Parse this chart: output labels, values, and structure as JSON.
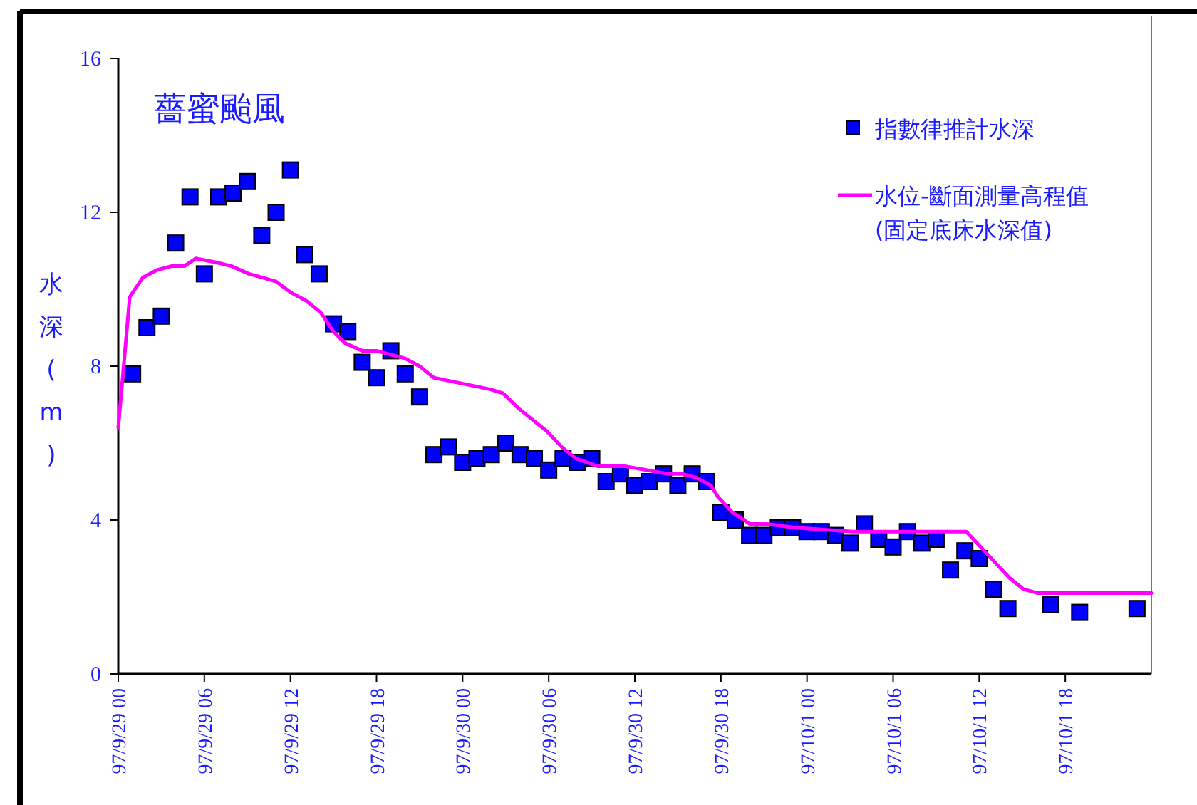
{
  "chart_data": {
    "type": "scatter",
    "title": "薔蜜颱風",
    "ylabel": "水深(m)",
    "legend": "top right",
    "xlim": [
      "--09-29T00:00",
      "--10-02T00:00"
    ],
    "ylim": [
      0,
      16
    ],
    "xticks": [
      {
        "value": "--09-29T00:00",
        "label": "97/9/29 00"
      },
      {
        "value": "--09-29T06:00",
        "label": "97/9/29 06"
      },
      {
        "value": "--09-29T12:00",
        "label": "97/9/29 12"
      },
      {
        "value": "--09-29T18:00",
        "label": "97/9/29 18"
      },
      {
        "value": "--09-30T00:00",
        "label": "97/9/30 00"
      },
      {
        "value": "--09-30T06:00",
        "label": "97/9/30 06"
      },
      {
        "value": "--09-30T12:00",
        "label": "97/9/30 12"
      },
      {
        "value": "--09-30T18:00",
        "label": "97/9/30 18"
      },
      {
        "value": "--10-01T00:00",
        "label": "97/10/1 00"
      },
      {
        "value": "--10-01T06:00",
        "label": "97/10/1 06"
      },
      {
        "value": "--10-01T12:00",
        "label": "97/10/1 12"
      },
      {
        "value": "--10-01T18:00",
        "label": "97/10/1 18"
      }
    ],
    "yticks": [
      0,
      4,
      8,
      12,
      16
    ],
    "series": [
      {
        "name": "指數律推計水深",
        "marker": "square",
        "color": "#0000ff",
        "x": [
          "--09-29T01:00",
          "--09-29T02:00",
          "--09-29T03:00",
          "--09-29T04:00",
          "--09-29T05:00",
          "--09-29T06:00",
          "--09-29T07:00",
          "--09-29T08:00",
          "--09-29T09:00",
          "--09-29T10:00",
          "--09-29T11:00",
          "--09-29T12:00",
          "--09-29T13:00",
          "--09-29T14:00",
          "--09-29T15:00",
          "--09-29T16:00",
          "--09-29T17:00",
          "--09-29T18:00",
          "--09-29T19:00",
          "--09-29T20:00",
          "--09-29T21:00",
          "--09-29T22:00",
          "--09-29T23:00",
          "--09-30T00:00",
          "--09-30T01:00",
          "--09-30T02:00",
          "--09-30T03:00",
          "--09-30T04:00",
          "--09-30T05:00",
          "--09-30T06:00",
          "--09-30T07:00",
          "--09-30T08:00",
          "--09-30T09:00",
          "--09-30T10:00",
          "--09-30T11:00",
          "--09-30T12:00",
          "--09-30T13:00",
          "--09-30T14:00",
          "--09-30T15:00",
          "--09-30T16:00",
          "--09-30T17:00",
          "--09-30T18:00",
          "--09-30T19:00",
          "--09-30T20:00",
          "--09-30T21:00",
          "--09-30T22:00",
          "--09-30T23:00",
          "--10-01T00:00",
          "--10-01T01:00",
          "--10-01T02:00",
          "--10-01T03:00",
          "--10-01T04:00",
          "--10-01T05:00",
          "--10-01T06:00",
          "--10-01T07:00",
          "--10-01T08:00",
          "--10-01T09:00",
          "--10-01T10:00",
          "--10-01T11:00",
          "--10-01T12:00",
          "--10-01T13:00",
          "--10-01T14:00",
          "--10-01T17:00",
          "--10-01T19:00",
          "--10-01T23:00"
        ],
        "values": [
          7.8,
          9.0,
          9.3,
          11.2,
          12.4,
          10.4,
          12.4,
          12.5,
          12.8,
          11.4,
          12.0,
          13.1,
          10.9,
          10.4,
          9.1,
          8.9,
          8.1,
          7.7,
          8.4,
          7.8,
          7.2,
          5.7,
          5.9,
          5.5,
          5.6,
          5.7,
          6.0,
          5.7,
          5.6,
          5.3,
          5.6,
          5.5,
          5.6,
          5.0,
          5.2,
          4.9,
          5.0,
          5.2,
          4.9,
          5.2,
          5.0,
          4.2,
          4.0,
          3.6,
          3.6,
          3.8,
          3.8,
          3.7,
          3.7,
          3.6,
          3.4,
          3.9,
          3.5,
          3.3,
          3.7,
          3.4,
          3.5,
          2.7,
          3.2,
          3.0,
          2.2,
          1.7,
          1.8,
          1.6,
          1.7
        ]
      },
      {
        "name": "水位-斷面測量高程值\n(固定底床水深值)",
        "type": "line",
        "color": "#ff00ff",
        "x": [
          "--09-29T00:00",
          "--09-29T00:48",
          "--09-29T01:42",
          "--09-29T02:42",
          "--09-29T03:42",
          "--09-29T04:36",
          "--09-29T05:24",
          "--09-29T06:48",
          "--09-29T07:54",
          "--09-29T09:06",
          "--09-29T10:06",
          "--09-29T11:00",
          "--09-29T12:06",
          "--09-29T13:06",
          "--09-29T14:06",
          "--09-29T15:00",
          "--09-29T15:48",
          "--09-29T17:00",
          "--09-29T18:00",
          "--09-29T19:00",
          "--09-29T20:00",
          "--09-29T21:00",
          "--09-29T22:00",
          "--09-29T23:18",
          "--09-30T01:54",
          "--09-30T02:48",
          "--09-30T03:54",
          "--09-30T04:54",
          "--09-30T05:54",
          "--09-30T06:54",
          "--09-30T07:54",
          "--09-30T09:24",
          "--09-30T11:18",
          "--09-30T12:48",
          "--09-30T14:18",
          "--09-30T15:18",
          "--09-30T16:18",
          "--09-30T17:18",
          "--09-30T17:48",
          "--09-30T18:48",
          "--09-30T20:00",
          "--09-30T21:12",
          "--09-30T23:12",
          "--10-01T03:12",
          "--10-01T07:06",
          "--10-01T11:06",
          "--10-01T12:06",
          "--10-01T13:06",
          "--10-01T14:06",
          "--10-01T15:06",
          "--10-01T16:06",
          "--10-01T19:00",
          "--10-02T00:00"
        ],
        "values": [
          6.4,
          9.8,
          10.3,
          10.5,
          10.6,
          10.6,
          10.8,
          10.7,
          10.6,
          10.4,
          10.3,
          10.2,
          9.9,
          9.7,
          9.4,
          8.9,
          8.6,
          8.4,
          8.4,
          8.3,
          8.2,
          8.0,
          7.7,
          7.6,
          7.4,
          7.3,
          6.9,
          6.6,
          6.3,
          5.9,
          5.6,
          5.4,
          5.4,
          5.3,
          5.2,
          5.2,
          5.1,
          4.9,
          4.6,
          4.2,
          3.9,
          3.9,
          3.8,
          3.7,
          3.7,
          3.7,
          3.3,
          2.9,
          2.5,
          2.2,
          2.1,
          2.1,
          2.1
        ]
      }
    ]
  }
}
